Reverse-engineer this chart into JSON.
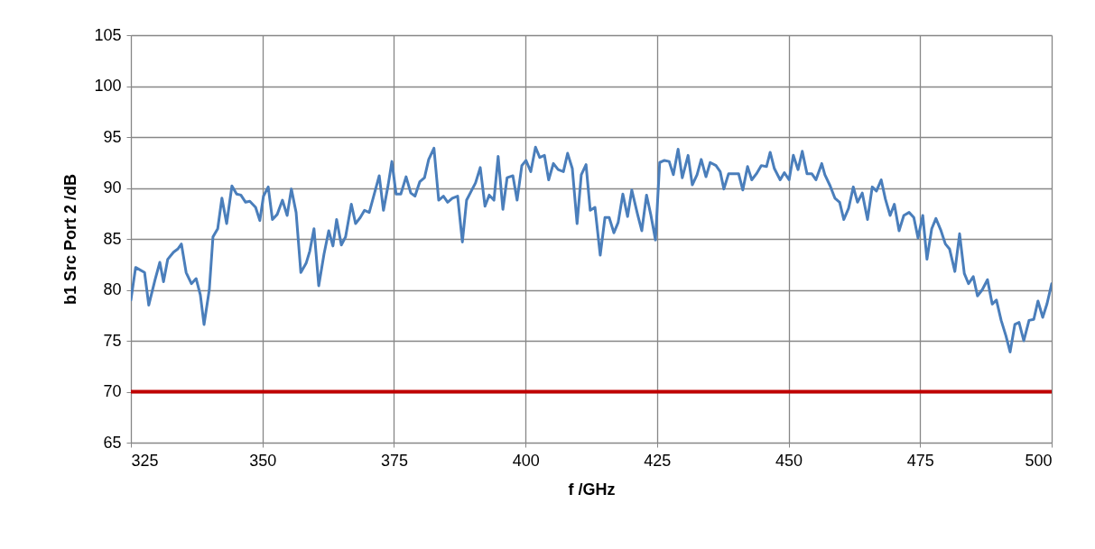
{
  "chart_data": {
    "type": "line",
    "xlabel": "f /GHz",
    "ylabel": "b1 Src Port 2 /dB",
    "xlim": [
      325,
      500
    ],
    "xticks": [
      325,
      350,
      375,
      400,
      425,
      450,
      475,
      500
    ],
    "ylim": [
      65,
      105
    ],
    "yticks": [
      65,
      70,
      75,
      80,
      85,
      90,
      95,
      100,
      105
    ],
    "grid": true,
    "marker": "none",
    "line_style": "solid",
    "ref_lines": [
      {
        "axis": "y",
        "value": 70,
        "color": "#c00000",
        "line_style": "solid"
      }
    ],
    "series": [
      {
        "color": "#4a7ebb",
        "x": [
          325.0,
          325.9,
          327.6,
          328.4,
          329.6,
          330.5,
          331.2,
          332.0,
          333.1,
          333.9,
          334.6,
          335.5,
          336.5,
          337.4,
          338.2,
          338.9,
          339.9,
          340.6,
          341.5,
          342.3,
          343.2,
          344.2,
          345.1,
          345.9,
          346.8,
          347.6,
          348.7,
          349.5,
          350.2,
          351.1,
          351.9,
          352.8,
          353.8,
          354.7,
          355.5,
          356.4,
          357.3,
          358.3,
          359.0,
          359.8,
          360.7,
          361.7,
          362.6,
          363.4,
          364.1,
          365.0,
          365.8,
          366.9,
          367.7,
          368.6,
          369.4,
          370.3,
          371.2,
          372.2,
          373.0,
          373.9,
          374.6,
          375.4,
          376.3,
          377.3,
          378.2,
          379.0,
          379.9,
          380.8,
          381.6,
          382.6,
          383.5,
          384.4,
          385.2,
          386.1,
          387.1,
          388.0,
          388.8,
          389.7,
          390.5,
          391.4,
          392.3,
          393.1,
          394.0,
          394.8,
          395.7,
          396.5,
          397.6,
          398.4,
          399.3,
          400.1,
          401.0,
          401.9,
          402.7,
          403.6,
          404.4,
          405.3,
          406.2,
          407.2,
          408.0,
          408.9,
          409.8,
          410.6,
          411.5,
          412.3,
          413.2,
          414.2,
          415.1,
          415.9,
          416.8,
          417.6,
          418.5,
          419.4,
          420.2,
          421.3,
          422.1,
          423.0,
          423.8,
          424.7,
          425.5,
          426.4,
          427.3,
          428.1,
          429.0,
          429.8,
          430.9,
          431.7,
          432.6,
          433.4,
          434.3,
          435.1,
          436.2,
          437.0,
          437.7,
          438.6,
          439.6,
          440.5,
          441.3,
          442.2,
          443.0,
          443.9,
          444.8,
          445.8,
          446.5,
          447.3,
          448.4,
          449.2,
          450.1,
          450.9,
          451.8,
          452.6,
          453.5,
          454.4,
          455.2,
          456.3,
          456.9,
          457.9,
          458.8,
          459.7,
          460.5,
          461.4,
          462.3,
          463.1,
          464.0,
          465.0,
          465.9,
          466.7,
          467.6,
          468.4,
          469.3,
          470.1,
          471.0,
          471.9,
          472.9,
          473.8,
          474.6,
          475.5,
          476.3,
          477.2,
          478.0,
          478.9,
          479.8,
          480.6,
          481.6,
          482.5,
          483.4,
          484.2,
          485.1,
          485.9,
          486.8,
          487.8,
          488.7,
          489.5,
          490.4,
          491.3,
          492.1,
          493.0,
          493.8,
          494.7,
          495.7,
          496.6,
          497.4,
          498.3,
          499.1,
          500.0
        ],
        "values": [
          79.0,
          82.2,
          81.7,
          78.5,
          81.0,
          82.7,
          80.8,
          83.0,
          83.7,
          84.0,
          84.5,
          81.7,
          80.6,
          81.1,
          79.5,
          76.6,
          80.0,
          85.2,
          86.0,
          89.0,
          86.5,
          90.2,
          89.4,
          89.3,
          88.6,
          88.7,
          88.1,
          86.8,
          89.2,
          90.1,
          86.9,
          87.4,
          88.8,
          87.3,
          89.9,
          87.6,
          81.7,
          82.6,
          83.8,
          86.0,
          80.4,
          83.5,
          85.8,
          84.3,
          86.9,
          84.4,
          85.2,
          88.4,
          86.5,
          87.1,
          87.8,
          87.6,
          89.3,
          91.2,
          87.8,
          90.3,
          92.6,
          89.4,
          89.4,
          91.1,
          89.5,
          89.2,
          90.6,
          91.0,
          92.8,
          93.9,
          88.8,
          89.2,
          88.6,
          89.0,
          89.2,
          84.7,
          88.8,
          89.7,
          90.5,
          92.0,
          88.2,
          89.3,
          88.8,
          93.1,
          87.9,
          91.0,
          91.2,
          88.8,
          92.2,
          92.7,
          91.6,
          94.0,
          93.0,
          93.2,
          90.8,
          92.4,
          91.8,
          91.6,
          93.4,
          91.9,
          86.5,
          91.3,
          92.3,
          87.8,
          88.1,
          83.4,
          87.1,
          87.1,
          85.6,
          86.6,
          89.4,
          87.2,
          89.8,
          87.4,
          85.8,
          89.3,
          87.4,
          84.9,
          92.5,
          92.7,
          92.6,
          91.3,
          93.8,
          91.0,
          93.2,
          90.3,
          91.3,
          92.8,
          91.1,
          92.5,
          92.2,
          91.6,
          89.9,
          91.4,
          91.4,
          91.4,
          89.8,
          92.1,
          90.8,
          91.4,
          92.2,
          92.1,
          93.5,
          91.9,
          90.8,
          91.5,
          90.8,
          93.2,
          91.8,
          93.6,
          91.4,
          91.4,
          90.8,
          92.4,
          91.3,
          90.2,
          89.0,
          88.6,
          86.9,
          88.0,
          90.1,
          88.6,
          89.5,
          86.9,
          90.1,
          89.7,
          90.8,
          88.9,
          87.3,
          88.4,
          85.8,
          87.3,
          87.6,
          87.1,
          85.1,
          87.3,
          83.0,
          86.0,
          87.0,
          85.9,
          84.5,
          84.0,
          81.8,
          85.5,
          81.6,
          80.6,
          81.3,
          79.4,
          80.0,
          81.0,
          78.6,
          79.0,
          77.0,
          75.5,
          73.9,
          76.6,
          76.8,
          75.0,
          77.0,
          77.1,
          78.9,
          77.3,
          78.6,
          80.6
        ]
      }
    ]
  }
}
